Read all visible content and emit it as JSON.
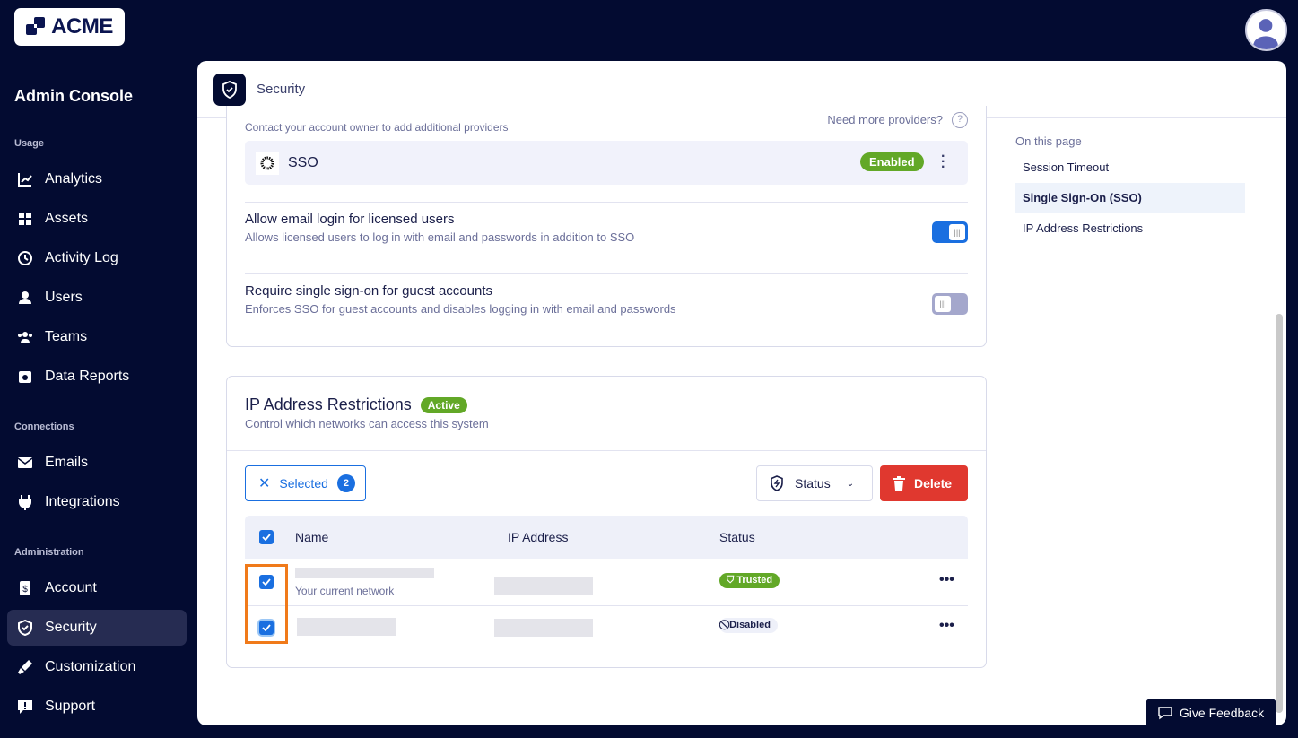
{
  "brand": {
    "logo_text": "ACME",
    "console_title": "Admin Console"
  },
  "sidebar": {
    "sections": [
      "Usage",
      "Connections",
      "Administration"
    ],
    "items": [
      {
        "label": "Analytics",
        "icon": "chart-line-icon"
      },
      {
        "label": "Assets",
        "icon": "grid-icon"
      },
      {
        "label": "Activity Log",
        "icon": "clock-icon"
      },
      {
        "label": "Users",
        "icon": "user-icon"
      },
      {
        "label": "Teams",
        "icon": "team-icon"
      },
      {
        "label": "Data Reports",
        "icon": "report-icon"
      },
      {
        "label": "Emails",
        "icon": "mail-icon"
      },
      {
        "label": "Integrations",
        "icon": "plug-icon"
      },
      {
        "label": "Account",
        "icon": "dollar-doc-icon"
      },
      {
        "label": "Security",
        "icon": "shield-icon",
        "active": true
      },
      {
        "label": "Customization",
        "icon": "brush-icon"
      },
      {
        "label": "Support",
        "icon": "chat-alert-icon"
      }
    ]
  },
  "header": {
    "title": "Security"
  },
  "sso": {
    "hint": "Contact your account owner to add additional providers",
    "more": "Need more providers?",
    "provider": "SSO",
    "status": "Enabled",
    "settings": [
      {
        "title": "Allow email login for licensed users",
        "desc": "Allows licensed users to log in with email and passwords in addition to SSO",
        "on": true
      },
      {
        "title": "Require single sign-on for guest accounts",
        "desc": "Enforces SSO for guest accounts and disables logging in with email and passwords",
        "on": false
      }
    ]
  },
  "ip": {
    "title": "IP Address Restrictions",
    "badge": "Active",
    "desc": "Control which networks can access this system",
    "selected_label": "Selected",
    "selected_count": "2",
    "status_filter": "Status",
    "delete": "Delete",
    "columns": [
      "Name",
      "IP Address",
      "Status"
    ],
    "rows": [
      {
        "sub": "Your current network",
        "status": "Trusted",
        "checked": true
      },
      {
        "sub": "",
        "status": "Disabled",
        "checked": true
      }
    ]
  },
  "toc": {
    "title": "On this page",
    "items": [
      "Session Timeout",
      "Single Sign-On (SSO)",
      "IP Address Restrictions"
    ],
    "active": 1
  },
  "feedback": "Give Feedback",
  "colors": {
    "bg": "#030b31",
    "accent": "#1a6fe0",
    "success": "#62a827",
    "danger": "#e0382f",
    "highlight": "#f07a1a"
  }
}
